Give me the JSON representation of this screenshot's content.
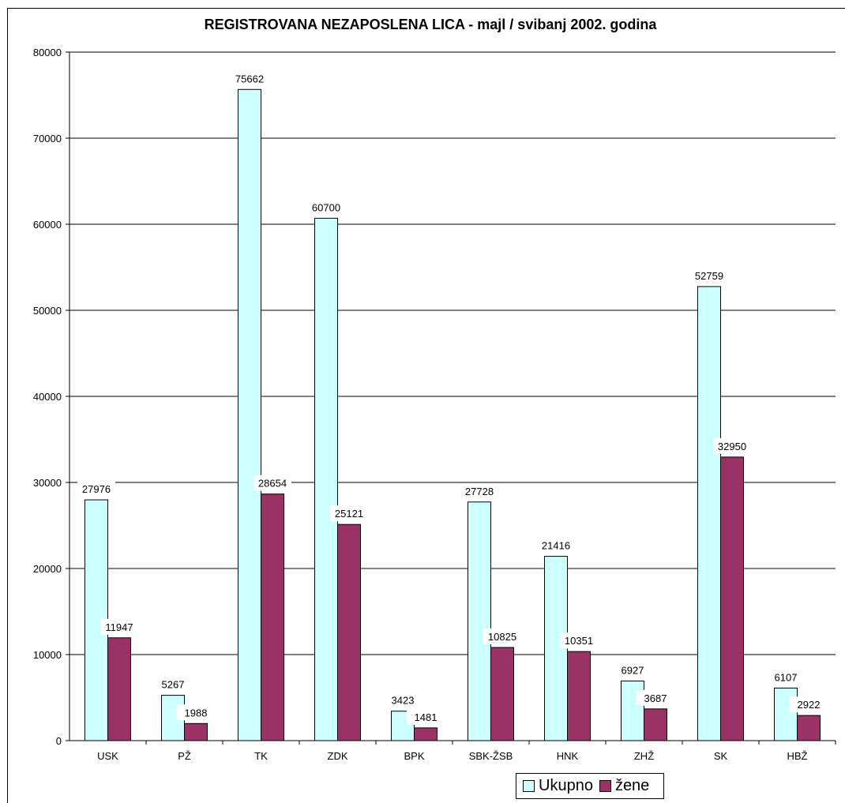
{
  "chart_data": {
    "type": "bar",
    "title": "REGISTROVANA NEZAPOSLENA LICA - majl / svibanj 2002. godina",
    "categories": [
      "USK",
      "PŽ",
      "TK",
      "ZDK",
      "BPK",
      "SBK-ŽSB",
      "HNK",
      "ZHŽ",
      "SK",
      "HBŽ"
    ],
    "series": [
      {
        "name": "Ukupno",
        "color": "#ccffff",
        "values": [
          27976,
          5267,
          75662,
          60700,
          3423,
          27728,
          21416,
          6927,
          52759,
          6107
        ]
      },
      {
        "name": "žene",
        "color": "#993366",
        "values": [
          11947,
          1988,
          28654,
          25121,
          1481,
          10825,
          10351,
          3687,
          32950,
          2922
        ]
      }
    ],
    "ylim": [
      0,
      80000
    ],
    "yticks": [
      0,
      10000,
      20000,
      30000,
      40000,
      50000,
      60000,
      70000,
      80000
    ],
    "grid": true,
    "legend_position": "bottom"
  }
}
